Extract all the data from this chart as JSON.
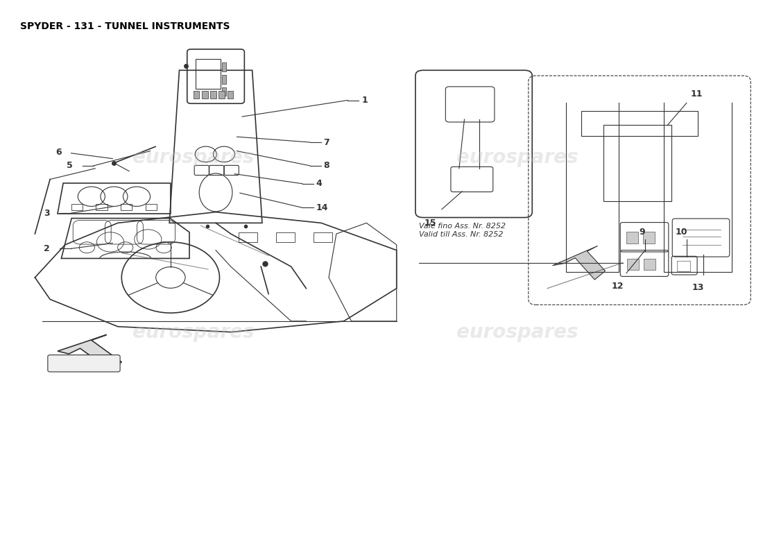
{
  "title": "SPYDER - 131 - TUNNEL INSTRUMENTS",
  "title_fontsize": 10,
  "title_color": "#000000",
  "background_color": "#ffffff",
  "line_color": "#333333",
  "watermark_text": "eurospares",
  "watermark_color": "#c0c0c0",
  "watermark_alpha": 0.35,
  "note_text_1": "Vale fino Ass. Nr. 8252",
  "note_text_2": "Valid till Ass. Nr. 8252"
}
